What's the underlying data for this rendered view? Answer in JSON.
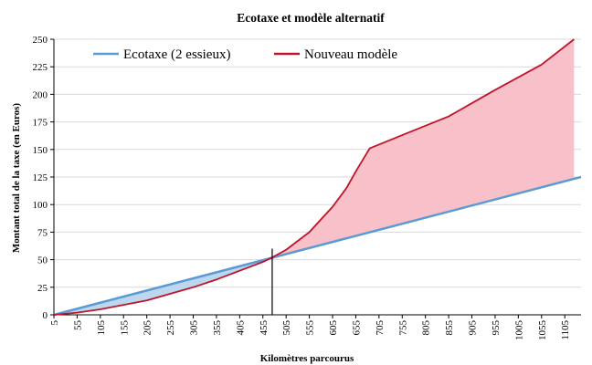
{
  "chart_data": {
    "type": "area",
    "title": "Ecotaxe et modèle alternatif",
    "xlabel": "Kilomètres parcourus",
    "ylabel": "Montant total de la taxe (en Euros)",
    "xlim": [
      5,
      1140
    ],
    "ylim": [
      0,
      250
    ],
    "yticks": [
      0,
      25,
      50,
      75,
      100,
      125,
      150,
      175,
      200,
      225,
      250
    ],
    "xticks": [
      5,
      55,
      105,
      155,
      205,
      255,
      305,
      355,
      405,
      455,
      505,
      555,
      605,
      655,
      705,
      755,
      805,
      855,
      905,
      955,
      1005,
      1055,
      1105
    ],
    "grid": true,
    "legend_position": "top-left",
    "marker_x": 475,
    "colors": {
      "ecotaxe": "#5b9bd5",
      "nouveau": "#c0142a",
      "fill_blue": "#bdd7ee",
      "fill_red": "#f8c0c8",
      "grid": "#d9d9d9"
    },
    "series": [
      {
        "name": "Ecotaxe (2 essieux)",
        "x": [
          5,
          1140
        ],
        "y": [
          0,
          125
        ]
      },
      {
        "name": "Nouveau modèle",
        "x": [
          5,
          55,
          105,
          155,
          205,
          255,
          305,
          355,
          405,
          455,
          475,
          505,
          555,
          605,
          635,
          655,
          685,
          755,
          855,
          955,
          1055,
          1125
        ],
        "y": [
          0,
          2,
          5,
          9,
          13,
          19,
          25,
          32,
          40,
          48,
          52,
          59,
          75,
          98,
          115,
          130,
          151,
          163,
          180,
          204,
          227,
          250
        ]
      }
    ]
  }
}
